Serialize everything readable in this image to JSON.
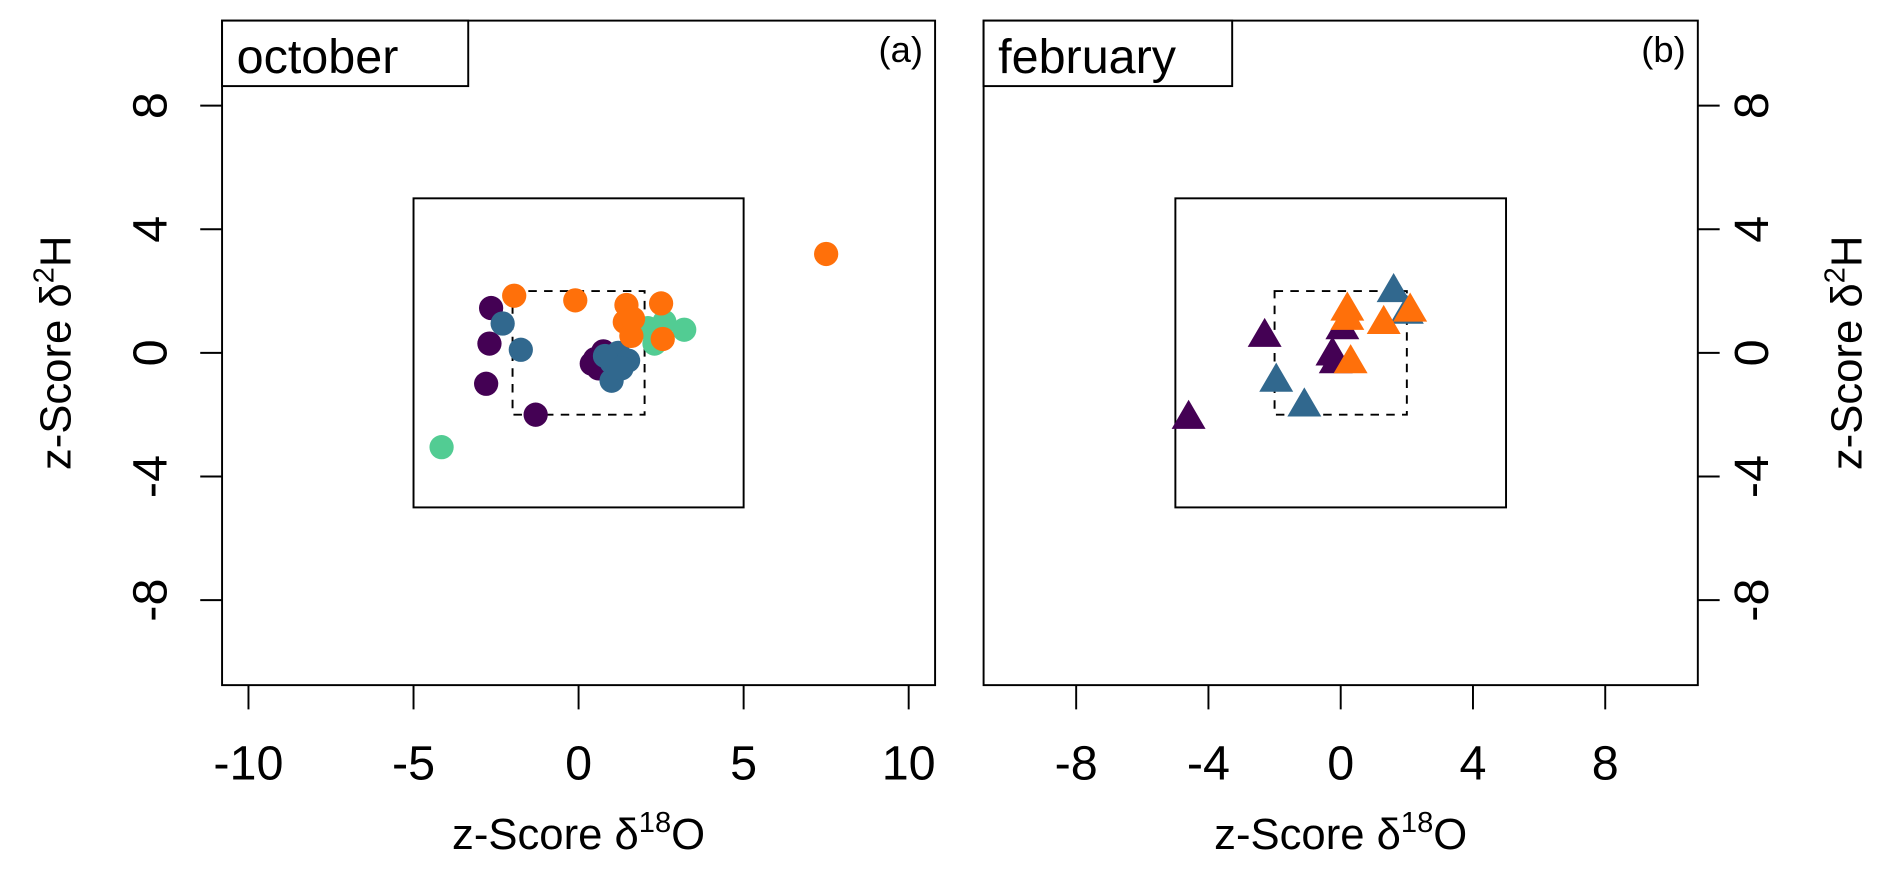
{
  "colors": {
    "purple": "#440154",
    "blue": "#31688e",
    "green": "#52cc93",
    "orange": "#ff700a"
  },
  "chart_data": [
    {
      "type": "scatter",
      "panel_tag": "(a)",
      "title": "october",
      "marker": "circle",
      "xlabel": "z-Score δ18O",
      "xlabel_parts": {
        "pre": "z-Score δ",
        "sup": "18",
        "post": "O"
      },
      "ylabel": "z-Score δ2H",
      "ylabel_parts": {
        "pre": "z-Score δ",
        "sup": "2",
        "post": "H"
      },
      "xlim": [
        -10.8,
        10.8
      ],
      "ylim": [
        -10.75,
        10.75
      ],
      "xticks": [
        -10,
        -5,
        0,
        5,
        10
      ],
      "yticks": [
        -8,
        -4,
        0,
        4,
        8
      ],
      "yaxis_side": "left",
      "reference_boxes": [
        {
          "style": "solid",
          "x": [
            -5,
            5
          ],
          "y": [
            -5,
            5
          ]
        },
        {
          "style": "dashed",
          "x": [
            -2,
            2
          ],
          "y": [
            -2,
            2
          ]
        }
      ],
      "series": [
        {
          "color_key": "purple",
          "points": [
            [
              -2.65,
              1.45
            ],
            [
              -2.7,
              0.3
            ],
            [
              -2.8,
              -1.0
            ],
            [
              -1.3,
              -2.0
            ],
            [
              0.5,
              -0.2
            ],
            [
              0.75,
              0.05
            ],
            [
              0.4,
              -0.35
            ],
            [
              0.6,
              -0.5
            ]
          ]
        },
        {
          "color_key": "blue",
          "points": [
            [
              -2.3,
              0.95
            ],
            [
              -1.75,
              0.1
            ],
            [
              1.0,
              -0.3
            ],
            [
              1.2,
              0.0
            ],
            [
              1.0,
              -0.9
            ],
            [
              1.5,
              -0.25
            ],
            [
              0.8,
              -0.1
            ],
            [
              1.3,
              -0.5
            ]
          ]
        },
        {
          "color_key": "green",
          "points": [
            [
              -4.15,
              -3.05
            ],
            [
              3.2,
              0.75
            ],
            [
              2.6,
              1.0
            ],
            [
              2.1,
              0.8
            ],
            [
              2.3,
              0.3
            ]
          ]
        },
        {
          "color_key": "orange",
          "points": [
            [
              -1.95,
              1.85
            ],
            [
              -0.1,
              1.7
            ],
            [
              1.45,
              1.55
            ],
            [
              1.4,
              1.0
            ],
            [
              1.6,
              0.55
            ],
            [
              1.65,
              1.1
            ],
            [
              2.5,
              1.6
            ],
            [
              2.55,
              0.45
            ],
            [
              7.5,
              3.2
            ]
          ]
        }
      ]
    },
    {
      "type": "scatter",
      "panel_tag": "(b)",
      "title": "february",
      "marker": "triangle",
      "xlabel": "z-Score δ18O",
      "xlabel_parts": {
        "pre": "z-Score δ",
        "sup": "18",
        "post": "O"
      },
      "ylabel": "z-Score δ2H",
      "ylabel_parts": {
        "pre": "z-Score δ",
        "sup": "2",
        "post": "H"
      },
      "xlim": [
        -10.8,
        10.8
      ],
      "ylim": [
        -10.75,
        10.75
      ],
      "xticks": [
        -8,
        -4,
        0,
        4,
        8
      ],
      "yticks": [
        -8,
        -4,
        0,
        4,
        8
      ],
      "yaxis_side": "right",
      "reference_boxes": [
        {
          "style": "solid",
          "x": [
            -5,
            5
          ],
          "y": [
            -5,
            5
          ]
        },
        {
          "style": "dashed",
          "x": [
            -2,
            2
          ],
          "y": [
            -2,
            2
          ]
        }
      ],
      "series": [
        {
          "color_key": "purple",
          "points": [
            [
              -4.6,
              -2.1
            ],
            [
              -2.3,
              0.55
            ],
            [
              0.05,
              0.8
            ],
            [
              -0.25,
              -0.05
            ],
            [
              -0.15,
              -0.3
            ]
          ]
        },
        {
          "color_key": "blue",
          "points": [
            [
              -1.95,
              -0.9
            ],
            [
              -1.1,
              -1.7
            ],
            [
              1.6,
              2.0
            ],
            [
              2.0,
              1.3
            ]
          ]
        },
        {
          "color_key": "orange",
          "points": [
            [
              0.2,
              1.4
            ],
            [
              0.2,
              1.1
            ],
            [
              1.3,
              0.97
            ],
            [
              2.1,
              1.37
            ],
            [
              0.3,
              -0.3
            ]
          ]
        }
      ]
    }
  ]
}
